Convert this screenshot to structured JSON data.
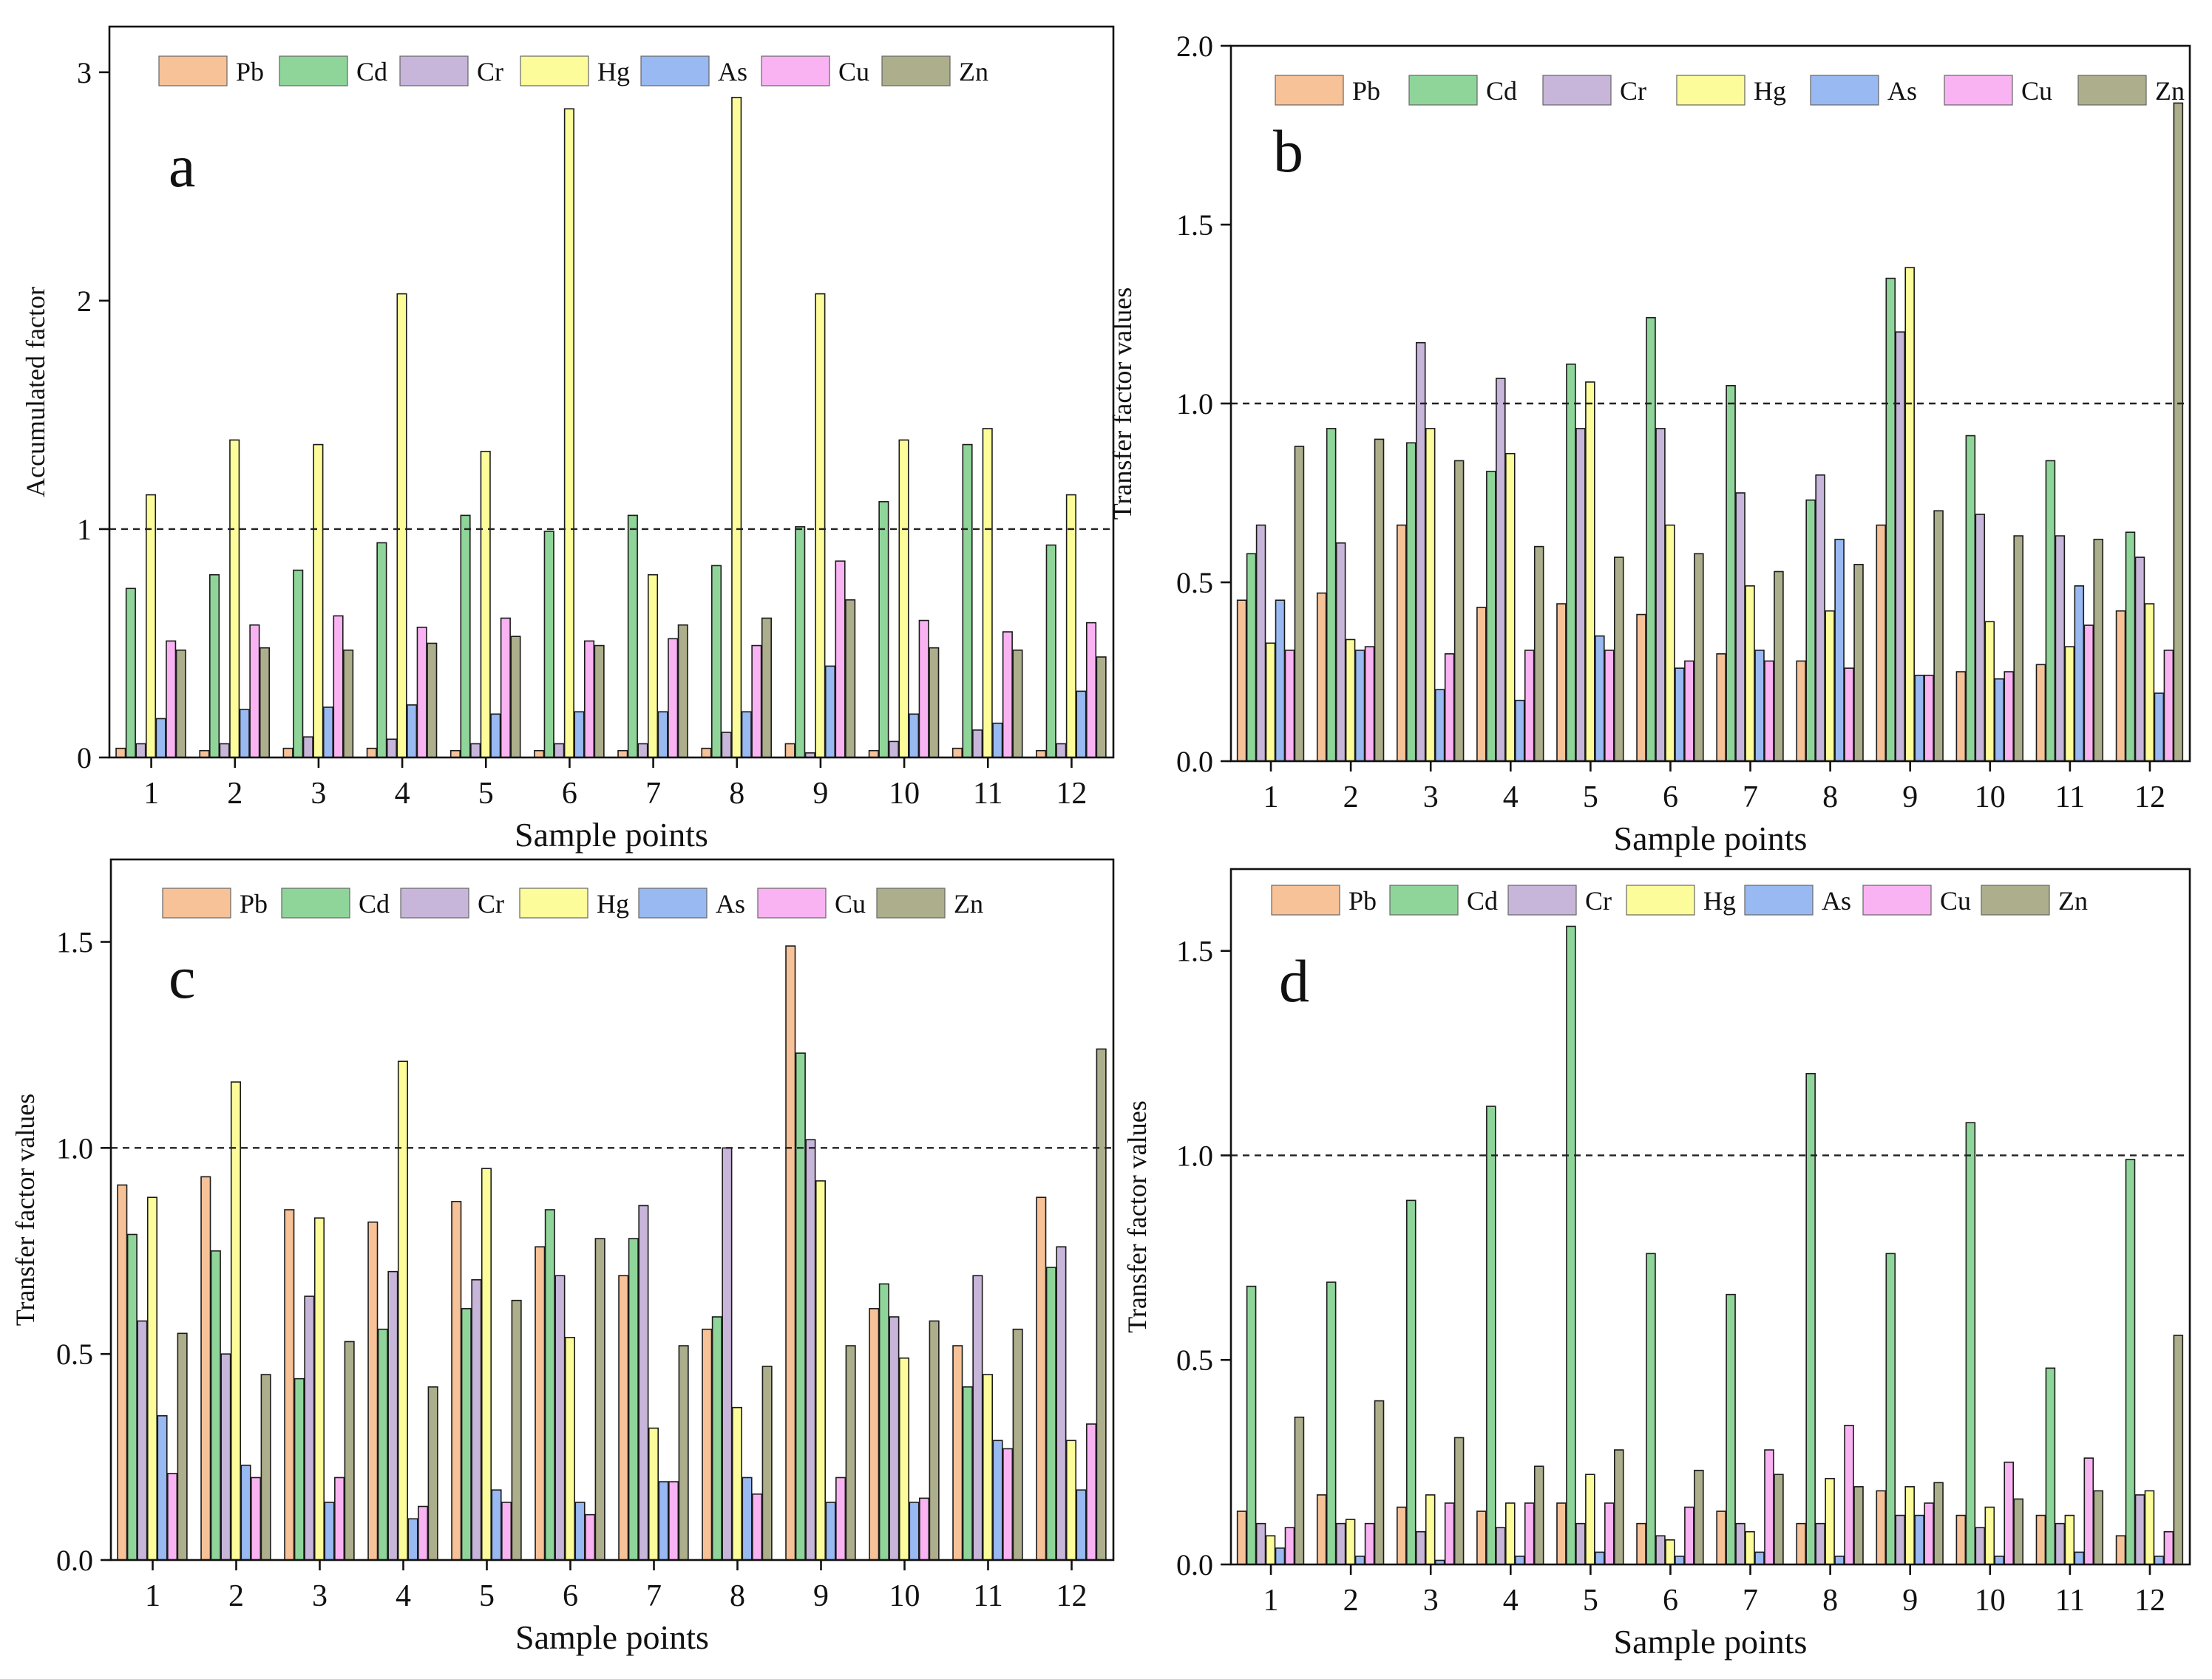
{
  "colors": {
    "Pb": "#F7C298",
    "Cd": "#8FD59A",
    "Cr": "#C7B5DA",
    "Hg": "#FCFC9A",
    "As": "#98B9F1",
    "Cu": "#F9B3F3",
    "Zn": "#ADAE8B"
  },
  "chart_data": [
    {
      "panel": "a",
      "type": "bar",
      "title": "",
      "xlabel": "Sample points",
      "ylabel": "Accumulated factor",
      "ylim": [
        0,
        3.2
      ],
      "yticks": [
        0,
        1,
        2,
        3
      ],
      "ytick_labels": [
        "0",
        "1",
        "2",
        "3"
      ],
      "reference_line": 1,
      "legend_position": "top",
      "categories": [
        "1",
        "2",
        "3",
        "4",
        "5",
        "6",
        "7",
        "8",
        "9",
        "10",
        "11",
        "12"
      ],
      "series": [
        {
          "name": "Pb",
          "values": [
            0.04,
            0.03,
            0.04,
            0.04,
            0.03,
            0.03,
            0.03,
            0.04,
            0.06,
            0.03,
            0.04,
            0.03
          ]
        },
        {
          "name": "Cd",
          "values": [
            0.74,
            0.8,
            0.82,
            0.94,
            1.06,
            0.99,
            1.06,
            0.84,
            1.01,
            1.12,
            1.37,
            0.93
          ]
        },
        {
          "name": "Cr",
          "values": [
            0.06,
            0.06,
            0.09,
            0.08,
            0.06,
            0.06,
            0.06,
            0.11,
            0.02,
            0.07,
            0.12,
            0.06
          ]
        },
        {
          "name": "Hg",
          "values": [
            1.15,
            1.39,
            1.37,
            2.03,
            1.34,
            2.84,
            0.8,
            2.89,
            2.03,
            1.39,
            1.44,
            1.15
          ]
        },
        {
          "name": "As",
          "values": [
            0.17,
            0.21,
            0.22,
            0.23,
            0.19,
            0.2,
            0.2,
            0.2,
            0.4,
            0.19,
            0.15,
            0.29
          ]
        },
        {
          "name": "Cu",
          "values": [
            0.51,
            0.58,
            0.62,
            0.57,
            0.61,
            0.51,
            0.52,
            0.49,
            0.86,
            0.6,
            0.55,
            0.59
          ]
        },
        {
          "name": "Zn",
          "values": [
            0.47,
            0.48,
            0.47,
            0.5,
            0.53,
            0.49,
            0.58,
            0.61,
            0.69,
            0.48,
            0.47,
            0.44
          ]
        }
      ]
    },
    {
      "panel": "b",
      "type": "bar",
      "title": "",
      "xlabel": "Sample points",
      "ylabel": "Transfer factor values",
      "ylim": [
        0,
        2.0
      ],
      "yticks": [
        0,
        0.5,
        1.0,
        1.5,
        2.0
      ],
      "ytick_labels": [
        "0.0",
        "0.5",
        "1.0",
        "1.5",
        "2.0"
      ],
      "reference_line": 1,
      "legend_position": "top",
      "categories": [
        "1",
        "2",
        "3",
        "4",
        "5",
        "6",
        "7",
        "8",
        "9",
        "10",
        "11",
        "12"
      ],
      "series": [
        {
          "name": "Pb",
          "values": [
            0.45,
            0.47,
            0.66,
            0.43,
            0.44,
            0.41,
            0.3,
            0.28,
            0.66,
            0.25,
            0.27,
            0.42
          ]
        },
        {
          "name": "Cd",
          "values": [
            0.58,
            0.93,
            0.89,
            0.81,
            1.11,
            1.24,
            1.05,
            0.73,
            1.35,
            0.91,
            0.84,
            0.64
          ]
        },
        {
          "name": "Cr",
          "values": [
            0.66,
            0.61,
            1.17,
            1.07,
            0.93,
            0.93,
            0.75,
            0.8,
            1.2,
            0.69,
            0.63,
            0.57
          ]
        },
        {
          "name": "Hg",
          "values": [
            0.33,
            0.34,
            0.93,
            0.86,
            1.06,
            0.66,
            0.49,
            0.42,
            1.38,
            0.39,
            0.32,
            0.44
          ]
        },
        {
          "name": "As",
          "values": [
            0.45,
            0.31,
            0.2,
            0.17,
            0.35,
            0.26,
            0.31,
            0.62,
            0.24,
            0.23,
            0.49,
            0.19
          ]
        },
        {
          "name": "Cu",
          "values": [
            0.31,
            0.32,
            0.3,
            0.31,
            0.31,
            0.28,
            0.28,
            0.26,
            0.24,
            0.25,
            0.38,
            0.31
          ]
        },
        {
          "name": "Zn",
          "values": [
            0.88,
            0.9,
            0.84,
            0.6,
            0.57,
            0.58,
            0.53,
            0.55,
            0.7,
            0.63,
            0.62,
            1.84
          ]
        }
      ]
    },
    {
      "panel": "c",
      "type": "bar",
      "title": "",
      "xlabel": "Sample points",
      "ylabel": "Transfer factor values",
      "ylim": [
        0,
        1.7
      ],
      "yticks": [
        0,
        0.5,
        1.0,
        1.5
      ],
      "ytick_labels": [
        "0.0",
        "0.5",
        "1.0",
        "1.5"
      ],
      "reference_line": 1,
      "legend_position": "top",
      "categories": [
        "1",
        "2",
        "3",
        "4",
        "5",
        "6",
        "7",
        "8",
        "9",
        "10",
        "11",
        "12"
      ],
      "series": [
        {
          "name": "Pb",
          "values": [
            0.91,
            0.93,
            0.85,
            0.82,
            0.87,
            0.76,
            0.69,
            0.56,
            1.49,
            0.61,
            0.52,
            0.88
          ]
        },
        {
          "name": "Cd",
          "values": [
            0.79,
            0.75,
            0.44,
            0.56,
            0.61,
            0.85,
            0.78,
            0.59,
            1.23,
            0.67,
            0.42,
            0.71
          ]
        },
        {
          "name": "Cr",
          "values": [
            0.58,
            0.5,
            0.64,
            0.7,
            0.68,
            0.69,
            0.86,
            1.0,
            1.02,
            0.59,
            0.69,
            0.76
          ]
        },
        {
          "name": "Hg",
          "values": [
            0.88,
            1.16,
            0.83,
            1.21,
            0.95,
            0.54,
            0.32,
            0.37,
            0.92,
            0.49,
            0.45,
            0.29
          ]
        },
        {
          "name": "As",
          "values": [
            0.35,
            0.23,
            0.14,
            0.1,
            0.17,
            0.14,
            0.19,
            0.2,
            0.14,
            0.14,
            0.29,
            0.17
          ]
        },
        {
          "name": "Cu",
          "values": [
            0.21,
            0.2,
            0.2,
            0.13,
            0.14,
            0.11,
            0.19,
            0.16,
            0.2,
            0.15,
            0.27,
            0.33
          ]
        },
        {
          "name": "Zn",
          "values": [
            0.55,
            0.45,
            0.53,
            0.42,
            0.63,
            0.78,
            0.52,
            0.47,
            0.52,
            0.58,
            0.56,
            1.24
          ]
        }
      ]
    },
    {
      "panel": "d",
      "type": "bar",
      "title": "",
      "xlabel": "Sample points",
      "ylabel": "Transfer factor values",
      "ylim": [
        0,
        1.7
      ],
      "yticks": [
        0,
        0.5,
        1.0,
        1.5
      ],
      "ytick_labels": [
        "0.0",
        "0.5",
        "1.0",
        "1.5"
      ],
      "reference_line": 1,
      "legend_position": "top",
      "categories": [
        "1",
        "2",
        "3",
        "4",
        "5",
        "6",
        "7",
        "8",
        "9",
        "10",
        "11",
        "12"
      ],
      "series": [
        {
          "name": "Pb",
          "values": [
            0.13,
            0.17,
            0.14,
            0.13,
            0.15,
            0.1,
            0.13,
            0.1,
            0.18,
            0.12,
            0.12,
            0.07
          ]
        },
        {
          "name": "Cd",
          "values": [
            0.68,
            0.69,
            0.89,
            1.12,
            1.56,
            0.76,
            0.66,
            1.2,
            0.76,
            1.08,
            0.48,
            0.99
          ]
        },
        {
          "name": "Cr",
          "values": [
            0.1,
            0.1,
            0.08,
            0.09,
            0.1,
            0.07,
            0.1,
            0.1,
            0.12,
            0.09,
            0.1,
            0.17
          ]
        },
        {
          "name": "Hg",
          "values": [
            0.07,
            0.11,
            0.17,
            0.15,
            0.22,
            0.06,
            0.08,
            0.21,
            0.19,
            0.14,
            0.12,
            0.18
          ]
        },
        {
          "name": "As",
          "values": [
            0.04,
            0.02,
            0.01,
            0.02,
            0.03,
            0.02,
            0.03,
            0.02,
            0.12,
            0.02,
            0.03,
            0.02
          ]
        },
        {
          "name": "Cu",
          "values": [
            0.09,
            0.1,
            0.15,
            0.15,
            0.15,
            0.14,
            0.28,
            0.34,
            0.15,
            0.25,
            0.26,
            0.08
          ]
        },
        {
          "name": "Zn",
          "values": [
            0.36,
            0.4,
            0.31,
            0.24,
            0.28,
            0.23,
            0.22,
            0.19,
            0.2,
            0.16,
            0.18,
            0.56
          ]
        }
      ]
    }
  ]
}
